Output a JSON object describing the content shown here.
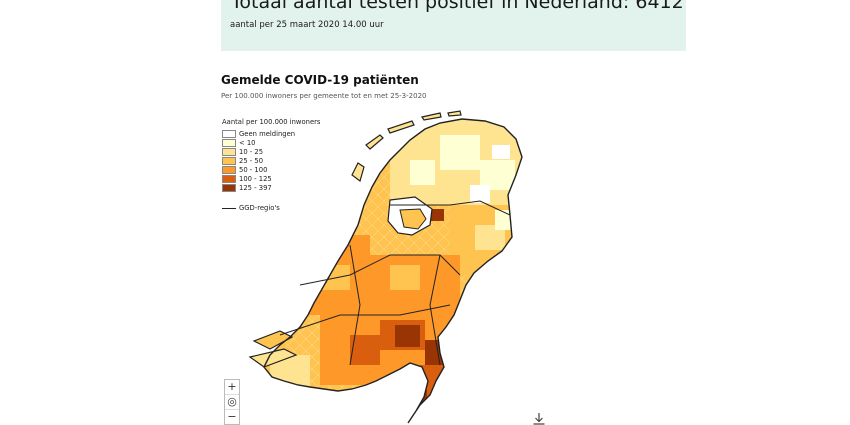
{
  "banner": {
    "title": "Totaal aantal testen positief in Nederland: 6412",
    "subtitle": "aantal per 25 maart 2020 14.00 uur"
  },
  "map": {
    "title": "Gemelde COVID-19 patiënten",
    "subtitle": "Per 100.000 inwoners per gemeente tot en met 25-3-2020",
    "legend_title": "Aantal per 100.000 inwoners",
    "legend": [
      {
        "label": "Geen meldingen",
        "color": "#ffffff"
      },
      {
        "label": "< 10",
        "color": "#ffffd4"
      },
      {
        "label": "10 - 25",
        "color": "#fee391"
      },
      {
        "label": "25 - 50",
        "color": "#fec44f"
      },
      {
        "label": "50 - 100",
        "color": "#fe9929"
      },
      {
        "label": "100 - 125",
        "color": "#d95f0e"
      },
      {
        "label": "125 - 397",
        "color": "#993404"
      }
    ],
    "ggd_label": "GGD-regio's"
  },
  "controls": {
    "zoom_in": "+",
    "reset": "◎",
    "zoom_out": "−"
  },
  "icons": {
    "download": "download-icon"
  }
}
